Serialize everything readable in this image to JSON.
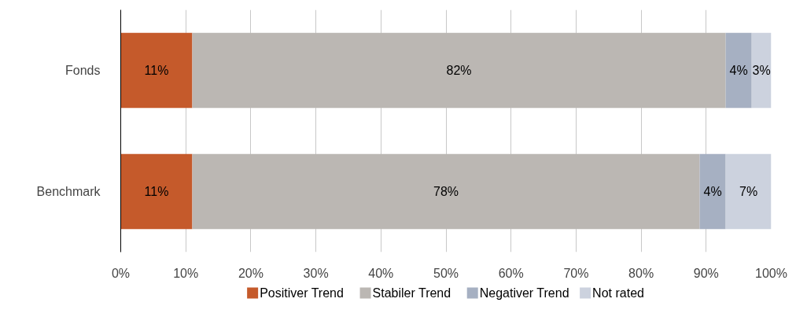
{
  "chart_data": {
    "type": "bar",
    "orientation": "horizontal",
    "stacked": true,
    "categories": [
      "Fonds",
      "Benchmark"
    ],
    "series": [
      {
        "name": "Positiver Trend",
        "color": "#c55a2b",
        "values": [
          11,
          11
        ],
        "value_labels": [
          "11%",
          "11%"
        ]
      },
      {
        "name": "Stabiler Trend",
        "color": "#bbb7b3",
        "values": [
          82,
          78
        ],
        "value_labels": [
          "82%",
          "78%"
        ]
      },
      {
        "name": "Negativer Trend",
        "color": "#a6b0c2",
        "values": [
          4,
          4
        ],
        "value_labels": [
          "4%",
          "4%"
        ]
      },
      {
        "name": "Not rated",
        "color": "#ccd2de",
        "values": [
          3,
          7
        ],
        "value_labels": [
          "3%",
          "7%"
        ]
      }
    ],
    "xlim": [
      0,
      100
    ],
    "xticks": [
      {
        "value": 0,
        "label": "0%"
      },
      {
        "value": 10,
        "label": "10%"
      },
      {
        "value": 20,
        "label": "20%"
      },
      {
        "value": 30,
        "label": "30%"
      },
      {
        "value": 40,
        "label": "40%"
      },
      {
        "value": 50,
        "label": "50%"
      },
      {
        "value": 60,
        "label": "60%"
      },
      {
        "value": 70,
        "label": "70%"
      },
      {
        "value": 80,
        "label": "80%"
      },
      {
        "value": 90,
        "label": "90%"
      },
      {
        "value": 100,
        "label": "100%"
      }
    ],
    "grid": "x",
    "legend": "bottom"
  }
}
